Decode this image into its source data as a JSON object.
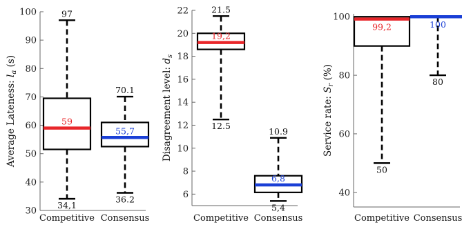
{
  "chart_data": [
    {
      "type": "boxplot",
      "ylabel": "Average Lateness:",
      "ylabel_math": "l",
      "ylabel_sub": "a",
      "ylabel_unit": "(s)",
      "ylim": [
        30,
        100
      ],
      "yticks": [
        30,
        40,
        50,
        60,
        70,
        80,
        90,
        100
      ],
      "categories": [
        "Competitive",
        "Consensus"
      ],
      "boxes": [
        {
          "min": 34.1,
          "q1": 51.5,
          "median": 59,
          "q3": 69.5,
          "max": 97,
          "min_label": "34,1",
          "median_label": "59",
          "max_label": "97",
          "median_color": "#e8262a"
        },
        {
          "min": 36.2,
          "q1": 52.5,
          "median": 55.7,
          "q3": 61,
          "max": 70.1,
          "min_label": "36.2",
          "median_label": "55,7",
          "max_label": "70.1",
          "median_color": "#1a3fd6"
        }
      ]
    },
    {
      "type": "boxplot",
      "ylabel": "Disagreement level:",
      "ylabel_math": "d",
      "ylabel_sub": "s",
      "ylabel_unit": "",
      "ylim": [
        5,
        22
      ],
      "yticks": [
        6,
        8,
        10,
        12,
        14,
        16,
        18,
        20,
        22
      ],
      "categories": [
        "Competitive",
        "Consensus"
      ],
      "boxes": [
        {
          "min": 12.5,
          "q1": 18.6,
          "median": 19.2,
          "q3": 20,
          "max": 21.5,
          "min_label": "12.5",
          "median_label": "19,2",
          "max_label": "21.5",
          "median_color": "#e8262a"
        },
        {
          "min": 5.4,
          "q1": 6.15,
          "median": 6.8,
          "q3": 7.6,
          "max": 10.9,
          "min_label": "5,4",
          "median_label": "6,8",
          "max_label": "10.9",
          "median_color": "#1a3fd6"
        }
      ]
    },
    {
      "type": "boxplot",
      "ylabel": "Service rate:",
      "ylabel_math": "S",
      "ylabel_sub": "r",
      "ylabel_unit": "(%)",
      "ylim": [
        35,
        101
      ],
      "yticks": [
        40,
        60,
        80,
        100
      ],
      "categories": [
        "Competitive",
        "Consensus"
      ],
      "boxes": [
        {
          "min": 50,
          "q1": 90,
          "median": 99.2,
          "q3": 100,
          "max": 100,
          "min_label": "50",
          "median_label": "99,2",
          "max_label": "",
          "median_color": "#e8262a"
        },
        {
          "min": 80,
          "q1": 100,
          "median": 100,
          "q3": 100,
          "max": 100,
          "min_label": "80",
          "median_label": "100",
          "max_label": "",
          "median_color": "#1a3fd6"
        }
      ]
    }
  ]
}
